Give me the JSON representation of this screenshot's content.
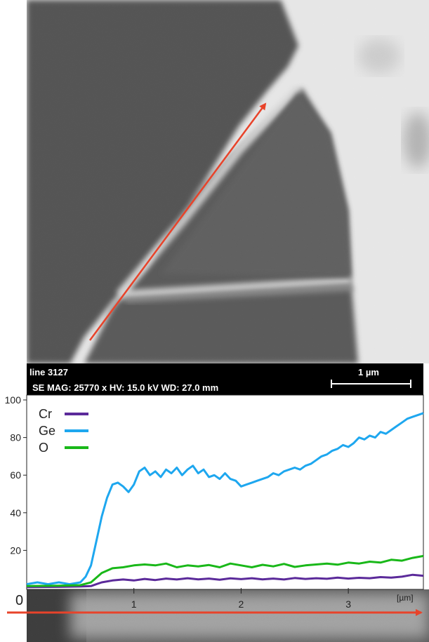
{
  "sem": {
    "line_label": "line 3127",
    "info_label": "SE  MAG: 25770 x HV: 15.0 kV  WD: 27.0 mm",
    "scale_label": "1 µm"
  },
  "chart_data": {
    "type": "line",
    "xlabel": "[µm]",
    "ylabel": "",
    "xlim": [
      0,
      3.7
    ],
    "ylim": [
      0,
      100
    ],
    "x_origin_label": "0",
    "xticks": [
      1,
      2,
      3
    ],
    "yticks": [
      20,
      40,
      60,
      80,
      100
    ],
    "legend_position": "top-left",
    "series": [
      {
        "name": "Cr",
        "color": "#5b2a9a",
        "points": [
          [
            0,
            0.5
          ],
          [
            0.3,
            0.6
          ],
          [
            0.5,
            0.8
          ],
          [
            0.6,
            1.0
          ],
          [
            0.65,
            2
          ],
          [
            0.7,
            3
          ],
          [
            0.8,
            4
          ],
          [
            0.9,
            4.5
          ],
          [
            1.0,
            4
          ],
          [
            1.1,
            4.8
          ],
          [
            1.2,
            4.2
          ],
          [
            1.3,
            5
          ],
          [
            1.4,
            4.5
          ],
          [
            1.5,
            5.2
          ],
          [
            1.6,
            4.6
          ],
          [
            1.7,
            5
          ],
          [
            1.8,
            4.4
          ],
          [
            1.9,
            5.1
          ],
          [
            2.0,
            4.7
          ],
          [
            2.1,
            5.2
          ],
          [
            2.2,
            4.6
          ],
          [
            2.3,
            5
          ],
          [
            2.4,
            4.5
          ],
          [
            2.5,
            5.3
          ],
          [
            2.6,
            4.8
          ],
          [
            2.7,
            5.2
          ],
          [
            2.8,
            4.9
          ],
          [
            2.9,
            5.5
          ],
          [
            3.0,
            5
          ],
          [
            3.1,
            5.4
          ],
          [
            3.2,
            5.2
          ],
          [
            3.3,
            5.8
          ],
          [
            3.4,
            5.5
          ],
          [
            3.5,
            6
          ],
          [
            3.6,
            7
          ],
          [
            3.7,
            6.5
          ]
        ]
      },
      {
        "name": "Ge",
        "color": "#1ea7ef",
        "points": [
          [
            0,
            2
          ],
          [
            0.1,
            3
          ],
          [
            0.2,
            2
          ],
          [
            0.3,
            3
          ],
          [
            0.4,
            2
          ],
          [
            0.5,
            3
          ],
          [
            0.55,
            6
          ],
          [
            0.6,
            12
          ],
          [
            0.65,
            25
          ],
          [
            0.7,
            38
          ],
          [
            0.75,
            48
          ],
          [
            0.8,
            55
          ],
          [
            0.85,
            56
          ],
          [
            0.9,
            54
          ],
          [
            0.95,
            51
          ],
          [
            1.0,
            55
          ],
          [
            1.05,
            62
          ],
          [
            1.1,
            64
          ],
          [
            1.15,
            60
          ],
          [
            1.2,
            62
          ],
          [
            1.25,
            59
          ],
          [
            1.3,
            63
          ],
          [
            1.35,
            61
          ],
          [
            1.4,
            64
          ],
          [
            1.45,
            60
          ],
          [
            1.5,
            63
          ],
          [
            1.55,
            65
          ],
          [
            1.6,
            61
          ],
          [
            1.65,
            63
          ],
          [
            1.7,
            59
          ],
          [
            1.75,
            60
          ],
          [
            1.8,
            58
          ],
          [
            1.85,
            61
          ],
          [
            1.9,
            58
          ],
          [
            1.95,
            57
          ],
          [
            2.0,
            54
          ],
          [
            2.05,
            55
          ],
          [
            2.1,
            56
          ],
          [
            2.15,
            57
          ],
          [
            2.2,
            58
          ],
          [
            2.25,
            59
          ],
          [
            2.3,
            61
          ],
          [
            2.35,
            60
          ],
          [
            2.4,
            62
          ],
          [
            2.45,
            63
          ],
          [
            2.5,
            64
          ],
          [
            2.55,
            63
          ],
          [
            2.6,
            65
          ],
          [
            2.65,
            66
          ],
          [
            2.7,
            68
          ],
          [
            2.75,
            70
          ],
          [
            2.8,
            71
          ],
          [
            2.85,
            73
          ],
          [
            2.9,
            74
          ],
          [
            2.95,
            76
          ],
          [
            3.0,
            75
          ],
          [
            3.05,
            77
          ],
          [
            3.1,
            80
          ],
          [
            3.15,
            79
          ],
          [
            3.2,
            81
          ],
          [
            3.25,
            80
          ],
          [
            3.3,
            83
          ],
          [
            3.35,
            82
          ],
          [
            3.4,
            84
          ],
          [
            3.45,
            86
          ],
          [
            3.5,
            88
          ],
          [
            3.55,
            90
          ],
          [
            3.6,
            91
          ],
          [
            3.65,
            92
          ],
          [
            3.7,
            93
          ]
        ]
      },
      {
        "name": "O",
        "color": "#19b819",
        "points": [
          [
            0,
            1
          ],
          [
            0.3,
            1.2
          ],
          [
            0.5,
            1.5
          ],
          [
            0.6,
            3
          ],
          [
            0.7,
            8
          ],
          [
            0.8,
            10.5
          ],
          [
            0.9,
            11
          ],
          [
            1.0,
            12
          ],
          [
            1.1,
            12.5
          ],
          [
            1.2,
            12
          ],
          [
            1.3,
            13
          ],
          [
            1.4,
            11
          ],
          [
            1.5,
            12
          ],
          [
            1.6,
            11.5
          ],
          [
            1.7,
            12.2
          ],
          [
            1.8,
            11
          ],
          [
            1.9,
            13
          ],
          [
            2.0,
            12
          ],
          [
            2.1,
            11
          ],
          [
            2.2,
            12.3
          ],
          [
            2.3,
            11.5
          ],
          [
            2.4,
            12.8
          ],
          [
            2.5,
            11.2
          ],
          [
            2.6,
            12
          ],
          [
            2.7,
            12.5
          ],
          [
            2.8,
            13
          ],
          [
            2.9,
            12.4
          ],
          [
            3.0,
            13.5
          ],
          [
            3.1,
            13
          ],
          [
            3.2,
            14
          ],
          [
            3.3,
            13.5
          ],
          [
            3.4,
            15
          ],
          [
            3.5,
            14.5
          ],
          [
            3.6,
            16
          ],
          [
            3.7,
            17
          ]
        ]
      }
    ]
  }
}
